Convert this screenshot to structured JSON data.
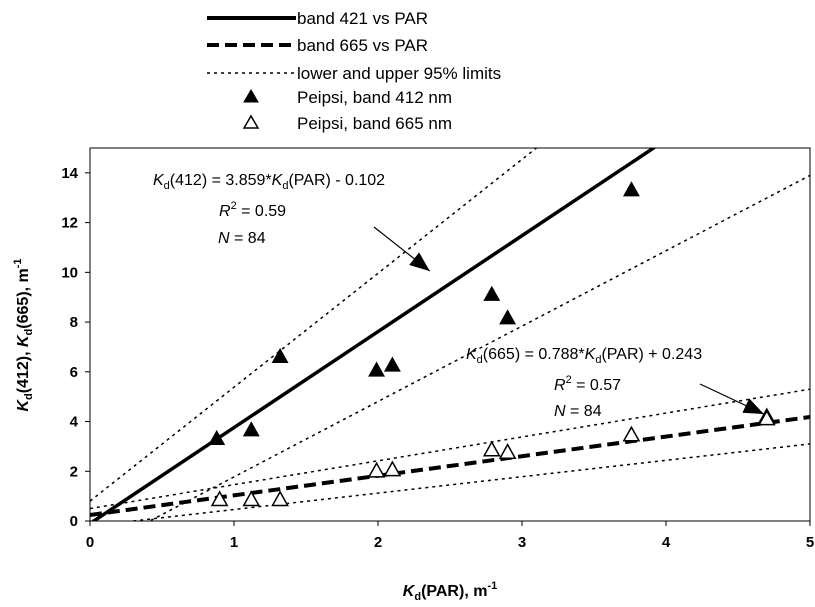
{
  "chart_data": {
    "type": "scatter",
    "xlabel": {
      "main": "K",
      "sub": "d",
      "rest": "(PAR), m",
      "sup": "-1"
    },
    "ylabel": {
      "k1": "K",
      "s1": "d",
      "r1": "(412), ",
      "k2": "K",
      "s2": "d",
      "r2": "(665), m",
      "sup": "-1"
    },
    "xlim": [
      0,
      5
    ],
    "ylim": [
      0,
      15
    ],
    "xticks": [
      "0",
      "1",
      "2",
      "3",
      "4",
      "5"
    ],
    "xtick_values": [
      0,
      1,
      2,
      3,
      4,
      5
    ],
    "yticks": [
      "0",
      "2",
      "4",
      "6",
      "8",
      "10",
      "12",
      "14"
    ],
    "ytick_values": [
      0,
      2,
      4,
      6,
      8,
      10,
      12,
      14
    ],
    "grid": false,
    "legend_position": "top",
    "legend": [
      {
        "label": "band 421 vs PAR",
        "style": "solid-line"
      },
      {
        "label": "band 665 vs PAR",
        "style": "dashed-line"
      },
      {
        "label": "lower and upper 95% limits",
        "style": "dotted-line"
      },
      {
        "label": "Peipsi, band 412 nm",
        "style": "filled-triangle"
      },
      {
        "label": "Peipsi, band 665 nm",
        "style": "open-triangle"
      }
    ],
    "series": [
      {
        "name": "Peipsi, band 412 nm",
        "marker": "filled-triangle",
        "x": [
          0.88,
          1.12,
          1.32,
          1.99,
          2.1,
          2.79,
          2.9,
          3.76,
          4.7
        ],
        "y": [
          3.3,
          3.65,
          6.6,
          6.05,
          6.25,
          9.1,
          8.15,
          13.3,
          4.2
        ]
      },
      {
        "name": "Peipsi, band 665 nm",
        "marker": "open-triangle",
        "x": [
          0.9,
          1.12,
          1.32,
          1.99,
          2.1,
          2.79,
          2.9,
          3.76,
          4.7
        ],
        "y": [
          0.85,
          0.85,
          0.85,
          2.0,
          2.05,
          2.85,
          2.75,
          3.45,
          4.1
        ]
      }
    ],
    "lines": [
      {
        "name": "band 421 vs PAR",
        "style": "solid",
        "slope": 3.859,
        "intercept": -0.102
      },
      {
        "name": "band 665 vs PAR",
        "style": "dashed",
        "slope": 0.788,
        "intercept": 0.243
      },
      {
        "name": "upper 95% limit (412)",
        "style": "dotted",
        "x": [
          0,
          3.1
        ],
        "y": [
          0.8,
          15
        ]
      },
      {
        "name": "lower 95% limit (412)",
        "style": "dotted",
        "x": [
          0.25,
          5
        ],
        "y": [
          -0.5,
          13.9
        ]
      },
      {
        "name": "upper 95% limit (665)",
        "style": "dotted",
        "x": [
          0,
          5
        ],
        "y": [
          0.5,
          5.3
        ]
      },
      {
        "name": "lower 95% limit (665)",
        "style": "dotted",
        "x": [
          0.3,
          5
        ],
        "y": [
          0,
          3.1
        ]
      }
    ],
    "annotations": [
      {
        "eq_k": "K",
        "eq_sub": "d",
        "eq_mid": "(412) = 3.859*",
        "eq_k2": "K",
        "eq_sub2": "d",
        "eq_end": "(PAR) - 0.102",
        "r2_label": "R",
        "r2_sup": "2",
        "r2_value": " = 0.59",
        "n_label": "N",
        "n_value": " = 84",
        "arrow_to": [
          2.36,
          10.05
        ]
      },
      {
        "eq_k": "K",
        "eq_sub": "d",
        "eq_mid": "(665) = 0.788*",
        "eq_k2": "K",
        "eq_sub2": "d",
        "eq_end": "(PAR) + 0.243",
        "r2_label": "R",
        "r2_sup": "2",
        "r2_value": " = 0.57",
        "n_label": "N",
        "n_value": " = 84",
        "arrow_to": [
          4.68,
          4.3
        ]
      }
    ]
  }
}
